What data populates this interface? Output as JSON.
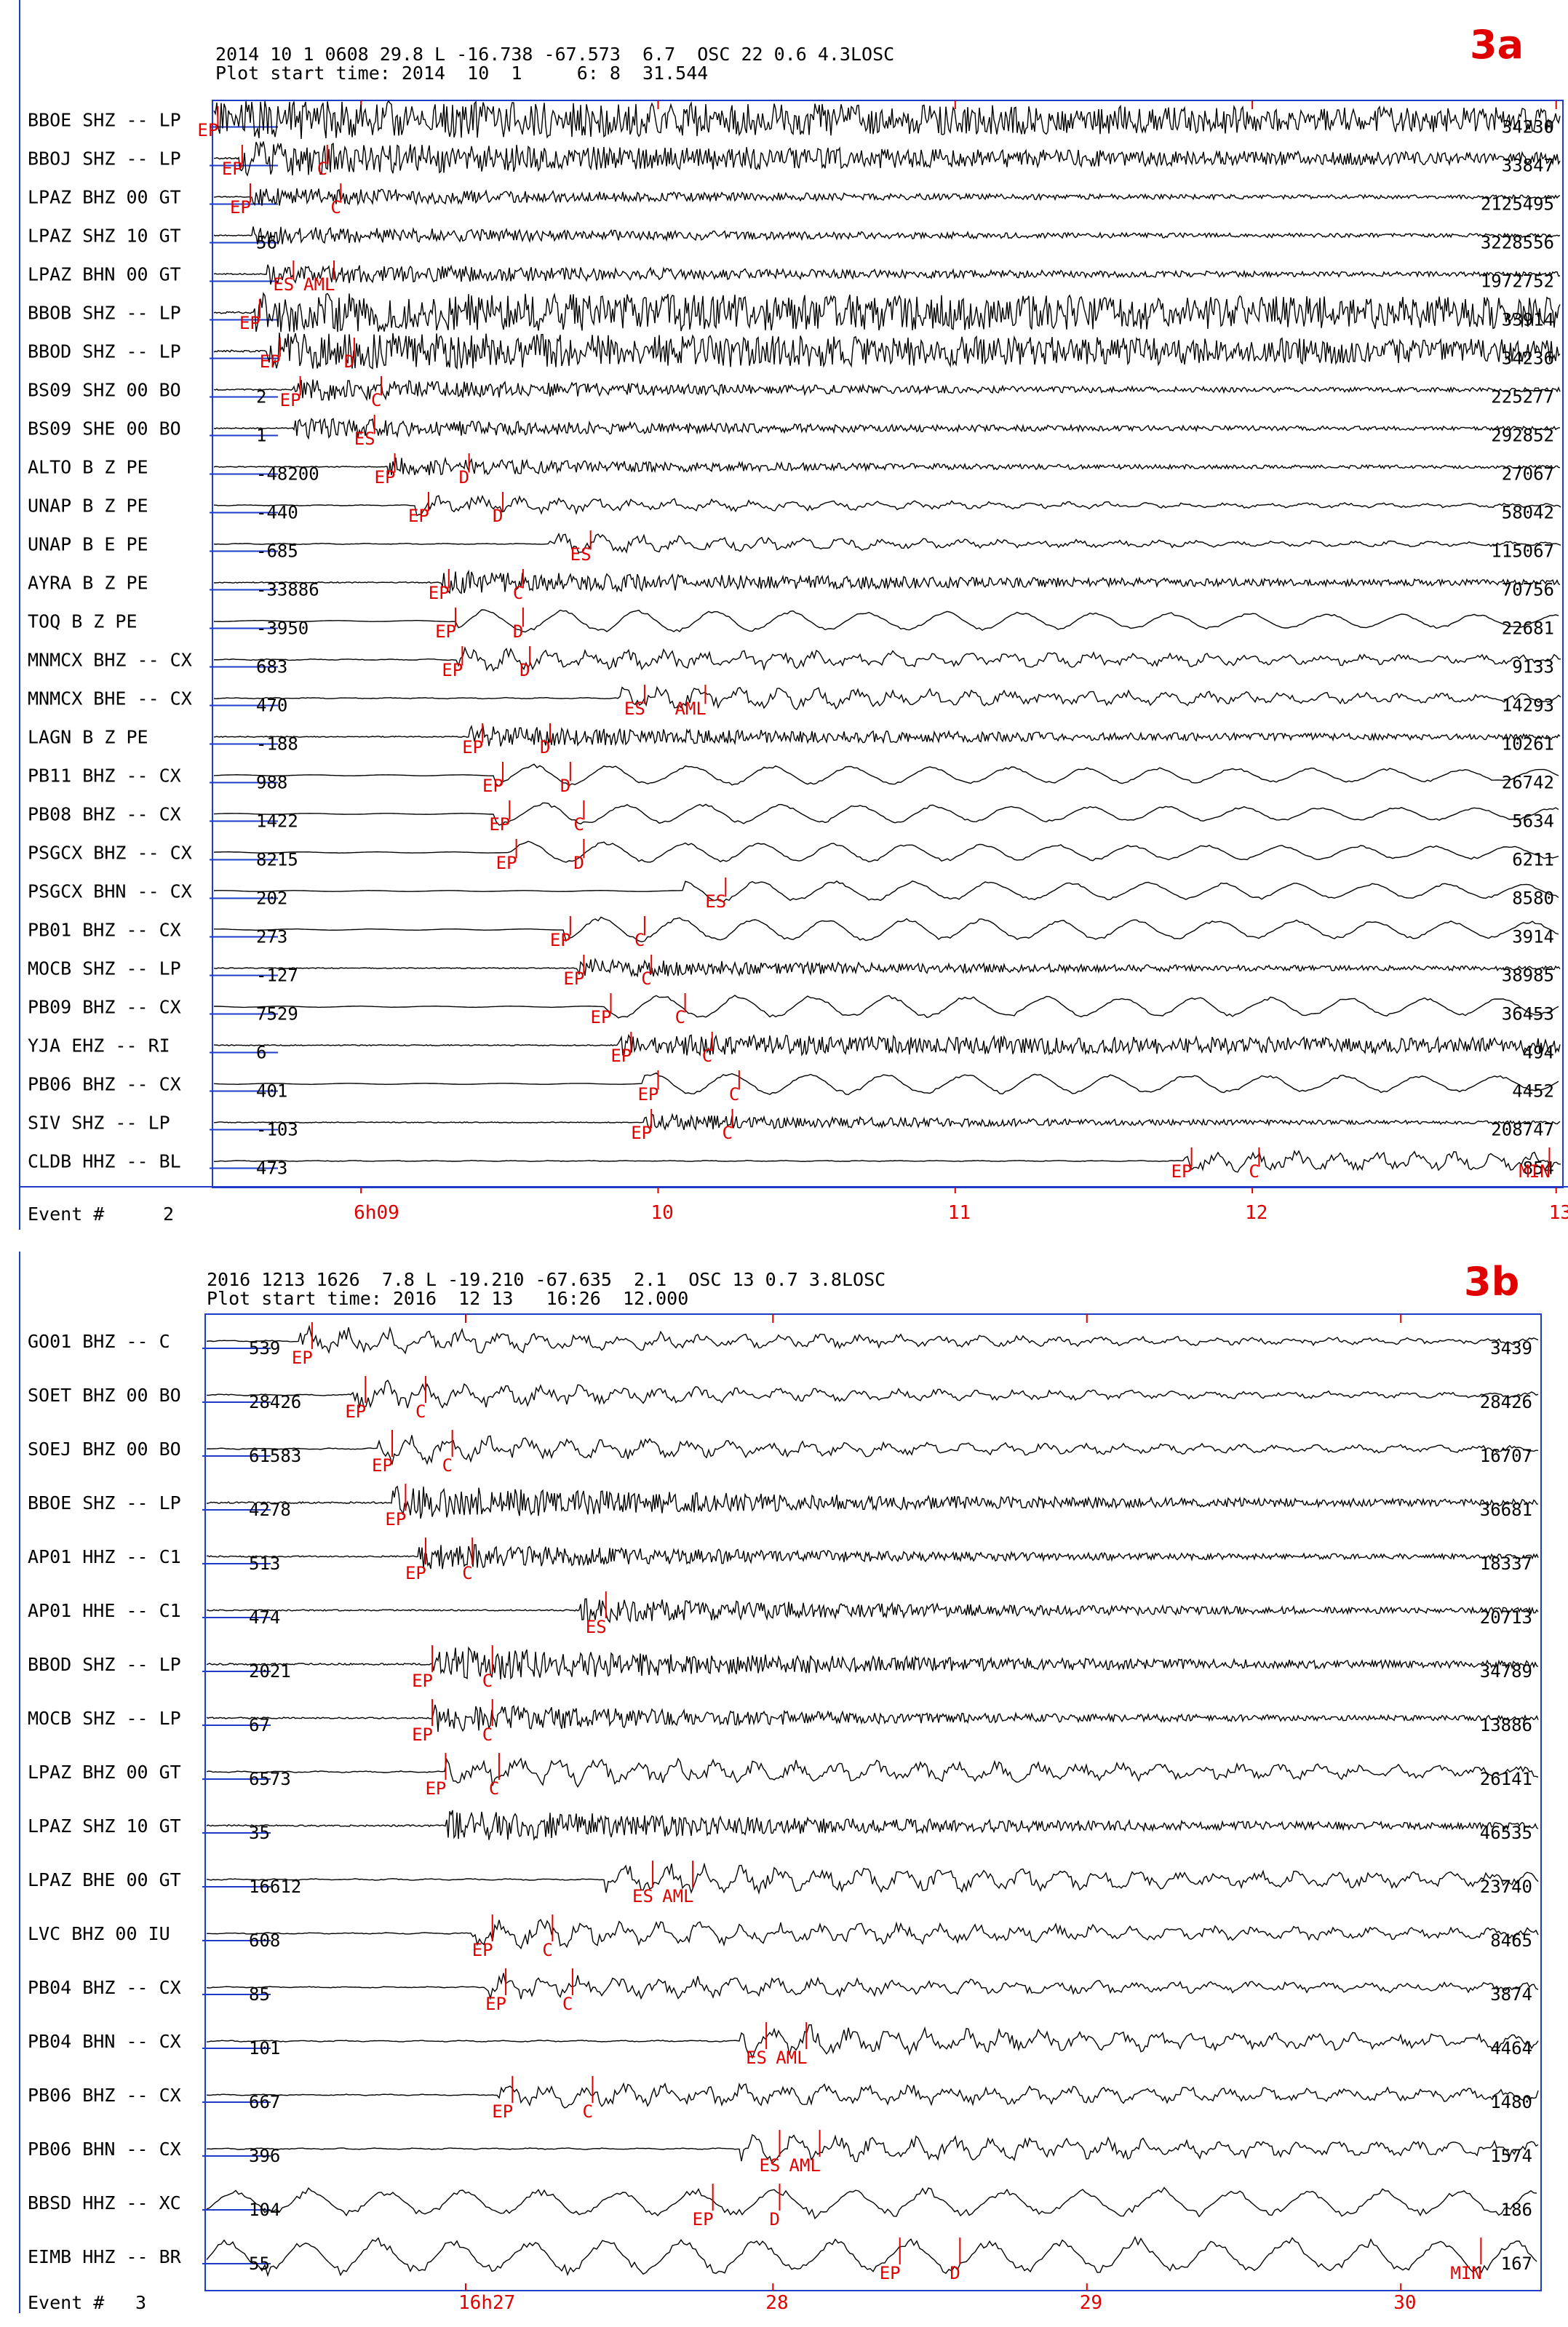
{
  "panel_a": {
    "badge": "3a",
    "header_line1": "2014 10 1 0608 29.8 L -16.738 -67.573  6.7  OSC 22 0.6 4.3LOSC",
    "header_line2": "Plot start time: 2014  10  1     6: 8  31.544",
    "event_label": "Event #",
    "event_number": "2",
    "time_ticks": [
      {
        "label": "6h09",
        "t": 0.11
      },
      {
        "label": "10",
        "t": 0.33
      },
      {
        "label": "11",
        "t": 0.55
      },
      {
        "label": "12",
        "t": 0.77
      },
      {
        "label": "13",
        "t": 0.995
      }
    ],
    "traces": [
      {
        "station": "BBOE  SHZ -- LP",
        "amp_left": "",
        "amp_right": "34230",
        "picks": [
          {
            "label": "EP",
            "t": 0.004
          }
        ],
        "amp": 0.95,
        "onset": 0.0,
        "freq": 9,
        "style": "dense",
        "decay": 0.2
      },
      {
        "station": "BBOJ  SHZ -- LP",
        "amp_left": "",
        "amp_right": "33847",
        "picks": [
          {
            "label": "EP",
            "t": 0.022
          },
          {
            "label": "C",
            "t": 0.085
          }
        ],
        "amp": 0.85,
        "onset": 0.02,
        "freq": 9,
        "style": "dense",
        "decay": 0.5
      },
      {
        "station": "LPAZ  BHZ 00 GT",
        "amp_left": "",
        "amp_right": "2125495",
        "picks": [
          {
            "label": "EP",
            "t": 0.028
          },
          {
            "label": "C",
            "t": 0.095
          }
        ],
        "amp": 0.45,
        "onset": 0.03,
        "freq": 8,
        "style": "dense",
        "decay": 0.9
      },
      {
        "station": "LPAZ  SHZ 10 GT",
        "amp_left": "56",
        "amp_right": "3228556",
        "picks": [],
        "amp": 0.45,
        "onset": 0.03,
        "freq": 8,
        "style": "dense",
        "decay": 0.9
      },
      {
        "station": "LPAZ  BHN 00 GT",
        "amp_left": "",
        "amp_right": "1972752",
        "picks": [
          {
            "label": "ES",
            "t": 0.06
          },
          {
            "label": "AML",
            "t": 0.09
          }
        ],
        "amp": 0.5,
        "onset": 0.04,
        "freq": 8,
        "style": "dense",
        "decay": 0.8
      },
      {
        "station": "BBOB  SHZ -- LP",
        "amp_left": "",
        "amp_right": "33914",
        "picks": [
          {
            "label": "EP",
            "t": 0.035
          }
        ],
        "amp": 0.95,
        "onset": 0.03,
        "freq": 9,
        "style": "dense",
        "decay": 0.1
      },
      {
        "station": "BBOD  SHZ -- LP",
        "amp_left": "",
        "amp_right": "34236",
        "picks": [
          {
            "label": "EP",
            "t": 0.05
          },
          {
            "label": "D",
            "t": 0.105
          }
        ],
        "amp": 0.9,
        "onset": 0.04,
        "freq": 9,
        "style": "dense",
        "decay": 0.2
      },
      {
        "station": "BS09  SHZ 00 BO",
        "amp_left": "2",
        "amp_right": "225277",
        "picks": [
          {
            "label": "EP",
            "t": 0.065
          },
          {
            "label": "C",
            "t": 0.125
          }
        ],
        "amp": 0.55,
        "onset": 0.06,
        "freq": 8,
        "style": "dense",
        "decay": 1.0
      },
      {
        "station": "BS09  SHE 00 BO",
        "amp_left": "1",
        "amp_right": "292852",
        "picks": [
          {
            "label": "ES",
            "t": 0.12
          }
        ],
        "amp": 0.5,
        "onset": 0.06,
        "freq": 8,
        "style": "dense",
        "decay": 1.0
      },
      {
        "station": "ALTO  B Z     PE",
        "amp_left": "-48200",
        "amp_right": "27067",
        "picks": [
          {
            "label": "EP",
            "t": 0.135
          },
          {
            "label": "D",
            "t": 0.19
          }
        ],
        "amp": 0.45,
        "onset": 0.13,
        "freq": 7,
        "style": "dense",
        "decay": 1.2
      },
      {
        "station": "UNAP  B Z     PE",
        "amp_left": "-440",
        "amp_right": "58042",
        "picks": [
          {
            "label": "EP",
            "t": 0.16
          },
          {
            "label": "D",
            "t": 0.215
          }
        ],
        "amp": 0.5,
        "onset": 0.15,
        "freq": 6,
        "style": "mixed",
        "decay": 1.0
      },
      {
        "station": "UNAP  B E     PE",
        "amp_left": "-685",
        "amp_right": "115067",
        "picks": [
          {
            "label": "ES",
            "t": 0.28
          }
        ],
        "amp": 0.5,
        "onset": 0.25,
        "freq": 6,
        "style": "mixed",
        "decay": 1.0
      },
      {
        "station": "AYRA  B Z     PE",
        "amp_left": "-33886",
        "amp_right": "70756",
        "picks": [
          {
            "label": "EP",
            "t": 0.175
          },
          {
            "label": "C",
            "t": 0.23
          }
        ],
        "amp": 0.55,
        "onset": 0.17,
        "freq": 7,
        "style": "dense",
        "decay": 0.8
      },
      {
        "station": "TOQ   B Z     PE",
        "amp_left": "-3950",
        "amp_right": "22681",
        "picks": [
          {
            "label": "EP",
            "t": 0.18
          },
          {
            "label": "D",
            "t": 0.23
          }
        ],
        "amp": 0.6,
        "onset": 0.18,
        "freq": 3,
        "style": "long",
        "decay": 0.3
      },
      {
        "station": "MNMCX BHZ -- CX",
        "amp_left": "683",
        "amp_right": "9133",
        "picks": [
          {
            "label": "EP",
            "t": 0.185
          },
          {
            "label": "D",
            "t": 0.235
          }
        ],
        "amp": 0.6,
        "onset": 0.18,
        "freq": 4,
        "style": "mixed",
        "decay": 0.5
      },
      {
        "station": "MNMCX BHE -- CX",
        "amp_left": "470",
        "amp_right": "14293",
        "picks": [
          {
            "label": "ES",
            "t": 0.32
          },
          {
            "label": "AML",
            "t": 0.365
          }
        ],
        "amp": 0.6,
        "onset": 0.3,
        "freq": 4,
        "style": "mixed",
        "decay": 0.6
      },
      {
        "station": "LAGN  B Z     PE",
        "amp_left": "-188",
        "amp_right": "10261",
        "picks": [
          {
            "label": "EP",
            "t": 0.2
          },
          {
            "label": "D",
            "t": 0.25
          }
        ],
        "amp": 0.5,
        "onset": 0.19,
        "freq": 7,
        "style": "dense",
        "decay": 0.8
      },
      {
        "station": "PB11  BHZ -- CX",
        "amp_left": "988",
        "amp_right": "26742",
        "picks": [
          {
            "label": "EP",
            "t": 0.215
          },
          {
            "label": "D",
            "t": 0.265
          }
        ],
        "amp": 0.55,
        "onset": 0.21,
        "freq": 3,
        "style": "long",
        "decay": 0.3
      },
      {
        "station": "PB08  BHZ -- CX",
        "amp_left": "1422",
        "amp_right": "5634",
        "picks": [
          {
            "label": "EP",
            "t": 0.22
          },
          {
            "label": "C",
            "t": 0.275
          }
        ],
        "amp": 0.55,
        "onset": 0.21,
        "freq": 3,
        "style": "long",
        "decay": 0.3
      },
      {
        "station": "PSGCX BHZ -- CX",
        "amp_left": "8215",
        "amp_right": "6211",
        "picks": [
          {
            "label": "EP",
            "t": 0.225
          },
          {
            "label": "D",
            "t": 0.275
          }
        ],
        "amp": 0.55,
        "onset": 0.22,
        "freq": 3,
        "style": "long",
        "decay": 0.3
      },
      {
        "station": "PSGCX BHN -- CX",
        "amp_left": "202",
        "amp_right": "8580",
        "picks": [
          {
            "label": "ES",
            "t": 0.38
          }
        ],
        "amp": 0.55,
        "onset": 0.35,
        "freq": 3,
        "style": "long",
        "decay": 0.3
      },
      {
        "station": "PB01  BHZ -- CX",
        "amp_left": "273",
        "amp_right": "3914",
        "picks": [
          {
            "label": "EP",
            "t": 0.265
          },
          {
            "label": "C",
            "t": 0.32
          }
        ],
        "amp": 0.6,
        "onset": 0.26,
        "freq": 3,
        "style": "long",
        "decay": 0.2
      },
      {
        "station": "MOCB  SHZ -- LP",
        "amp_left": "-127",
        "amp_right": "38985",
        "picks": [
          {
            "label": "EP",
            "t": 0.275
          },
          {
            "label": "C",
            "t": 0.325
          }
        ],
        "amp": 0.45,
        "onset": 0.27,
        "freq": 8,
        "style": "dense",
        "decay": 1.0
      },
      {
        "station": "PB09  BHZ -- CX",
        "amp_left": "7529",
        "amp_right": "36453",
        "picks": [
          {
            "label": "EP",
            "t": 0.295
          },
          {
            "label": "C",
            "t": 0.35
          }
        ],
        "amp": 0.6,
        "onset": 0.29,
        "freq": 3,
        "style": "long",
        "decay": 0.2
      },
      {
        "station": "YJA   EHZ -- RI",
        "amp_left": "6",
        "amp_right": "494",
        "picks": [
          {
            "label": "EP",
            "t": 0.31
          },
          {
            "label": "C",
            "t": 0.37
          }
        ],
        "amp": 0.5,
        "onset": 0.3,
        "freq": 8,
        "style": "dense",
        "decay": 0.2
      },
      {
        "station": "PB06  BHZ -- CX",
        "amp_left": "401",
        "amp_right": "4452",
        "picks": [
          {
            "label": "EP",
            "t": 0.33
          },
          {
            "label": "C",
            "t": 0.39
          }
        ],
        "amp": 0.55,
        "onset": 0.32,
        "freq": 3,
        "style": "long",
        "decay": 0.2
      },
      {
        "station": "SIV   SHZ -- LP",
        "amp_left": "-103",
        "amp_right": "208747",
        "picks": [
          {
            "label": "EP",
            "t": 0.325
          },
          {
            "label": "C",
            "t": 0.385
          }
        ],
        "amp": 0.4,
        "onset": 0.32,
        "freq": 8,
        "style": "dense",
        "decay": 1.2
      },
      {
        "station": "CLDB  HHZ -- BL",
        "amp_left": "473",
        "amp_right": "854",
        "picks": [
          {
            "label": "EP",
            "t": 0.725
          },
          {
            "label": "C",
            "t": 0.775
          },
          {
            "label": "MIN",
            "t": 0.99
          }
        ],
        "amp": 0.5,
        "onset": 0.72,
        "freq": 6,
        "style": "mixed",
        "decay": 0.3
      }
    ]
  },
  "panel_b": {
    "badge": "3b",
    "header_line1": "2016 1213 1626  7.8 L -19.210 -67.635  2.1  OSC 13 0.7 3.8LOSC",
    "header_line2": "Plot start time: 2016  12 13   16:26  12.000",
    "event_label": "Event #",
    "event_number": "3",
    "time_ticks": [
      {
        "label": "16h27",
        "t": 0.195
      },
      {
        "label": "28",
        "t": 0.425
      },
      {
        "label": "29",
        "t": 0.66
      },
      {
        "label": "30",
        "t": 0.895
      }
    ],
    "traces": [
      {
        "station": "GO01  BHZ -- C",
        "amp_left": "539",
        "amp_right": "3439",
        "picks": [
          {
            "label": "EP",
            "t": 0.08
          }
        ],
        "amp": 0.5,
        "onset": 0.07,
        "freq": 4,
        "style": "mixed",
        "decay": 0.8
      },
      {
        "station": "SOET  BHZ 00 BO",
        "amp_left": "28426",
        "amp_right": "28426",
        "picks": [
          {
            "label": "EP",
            "t": 0.12
          },
          {
            "label": "C",
            "t": 0.165
          }
        ],
        "amp": 0.5,
        "onset": 0.11,
        "freq": 6,
        "style": "mixed",
        "decay": 0.9
      },
      {
        "station": "SOEJ  BHZ 00 BO",
        "amp_left": "61583",
        "amp_right": "16707",
        "picks": [
          {
            "label": "EP",
            "t": 0.14
          },
          {
            "label": "C",
            "t": 0.185
          }
        ],
        "amp": 0.5,
        "onset": 0.13,
        "freq": 6,
        "style": "mixed",
        "decay": 0.8
      },
      {
        "station": "BBOE  SHZ -- LP",
        "amp_left": "4278",
        "amp_right": "36681",
        "picks": [
          {
            "label": "EP",
            "t": 0.15
          }
        ],
        "amp": 0.6,
        "onset": 0.14,
        "freq": 9,
        "style": "dense",
        "decay": 1.0
      },
      {
        "station": "AP01  HHZ -- C1",
        "amp_left": "513",
        "amp_right": "18337",
        "picks": [
          {
            "label": "EP",
            "t": 0.165
          },
          {
            "label": "C",
            "t": 0.2
          }
        ],
        "amp": 0.45,
        "onset": 0.16,
        "freq": 8,
        "style": "dense",
        "decay": 1.1
      },
      {
        "station": "AP01  HHE -- C1",
        "amp_left": "474",
        "amp_right": "20713",
        "picks": [
          {
            "label": "ES",
            "t": 0.3
          }
        ],
        "amp": 0.45,
        "onset": 0.28,
        "freq": 8,
        "style": "dense",
        "decay": 1.1
      },
      {
        "station": "BBOD  SHZ -- LP",
        "amp_left": "2021",
        "amp_right": "34789",
        "picks": [
          {
            "label": "EP",
            "t": 0.17
          },
          {
            "label": "C",
            "t": 0.215
          }
        ],
        "amp": 0.6,
        "onset": 0.17,
        "freq": 9,
        "style": "dense",
        "decay": 1.0
      },
      {
        "station": "MOCB  SHZ -- LP",
        "amp_left": "67",
        "amp_right": "13886",
        "picks": [
          {
            "label": "EP",
            "t": 0.17
          },
          {
            "label": "C",
            "t": 0.215
          }
        ],
        "amp": 0.5,
        "onset": 0.17,
        "freq": 9,
        "style": "dense",
        "decay": 1.2
      },
      {
        "station": "LPAZ  BHZ 00 GT",
        "amp_left": "6573",
        "amp_right": "26141",
        "picks": [
          {
            "label": "EP",
            "t": 0.18
          },
          {
            "label": "C",
            "t": 0.22
          }
        ],
        "amp": 0.55,
        "onset": 0.18,
        "freq": 4,
        "style": "mixed",
        "decay": 0.5
      },
      {
        "station": "LPAZ  SHZ 10 GT",
        "amp_left": "35",
        "amp_right": "46535",
        "picks": [],
        "amp": 0.55,
        "onset": 0.18,
        "freq": 9,
        "style": "dense",
        "decay": 1.0
      },
      {
        "station": "LPAZ  BHE 00 GT",
        "amp_left": "16612",
        "amp_right": "23740",
        "picks": [
          {
            "label": "ES",
            "t": 0.335
          },
          {
            "label": "AML",
            "t": 0.365
          }
        ],
        "amp": 0.55,
        "onset": 0.3,
        "freq": 4,
        "style": "mixed",
        "decay": 0.5
      },
      {
        "station": "LVC   BHZ 00 IU",
        "amp_left": "608",
        "amp_right": "8465",
        "picks": [
          {
            "label": "EP",
            "t": 0.215
          },
          {
            "label": "C",
            "t": 0.26
          }
        ],
        "amp": 0.5,
        "onset": 0.2,
        "freq": 4,
        "style": "mixed",
        "decay": 0.5
      },
      {
        "station": "PB04  BHZ -- CX",
        "amp_left": "85",
        "amp_right": "3874",
        "picks": [
          {
            "label": "EP",
            "t": 0.225
          },
          {
            "label": "C",
            "t": 0.275
          }
        ],
        "amp": 0.45,
        "onset": 0.21,
        "freq": 4,
        "style": "mixed",
        "decay": 0.6
      },
      {
        "station": "PB04  BHN -- CX",
        "amp_left": "101",
        "amp_right": "4464",
        "picks": [
          {
            "label": "ES",
            "t": 0.42
          },
          {
            "label": "AML",
            "t": 0.45
          }
        ],
        "amp": 0.55,
        "onset": 0.4,
        "freq": 4,
        "style": "mixed",
        "decay": 0.6
      },
      {
        "station": "PB06  BHZ -- CX",
        "amp_left": "667",
        "amp_right": "1480",
        "picks": [
          {
            "label": "EP",
            "t": 0.23
          },
          {
            "label": "C",
            "t": 0.29
          }
        ],
        "amp": 0.45,
        "onset": 0.22,
        "freq": 4,
        "style": "mixed",
        "decay": 0.4
      },
      {
        "station": "PB06  BHN -- CX",
        "amp_left": "396",
        "amp_right": "1574",
        "picks": [
          {
            "label": "ES",
            "t": 0.43
          },
          {
            "label": "AML",
            "t": 0.46
          }
        ],
        "amp": 0.5,
        "onset": 0.4,
        "freq": 4,
        "style": "mixed",
        "decay": 0.5
      },
      {
        "station": "BBSD  HHZ -- XC",
        "amp_left": "104",
        "amp_right": "186",
        "picks": [
          {
            "label": "EP",
            "t": 0.38
          },
          {
            "label": "D",
            "t": 0.43
          }
        ],
        "amp": 0.55,
        "onset": 0.0,
        "freq": 2,
        "style": "long",
        "decay": 0.0
      },
      {
        "station": "EIMB  HHZ -- BR",
        "amp_left": "55",
        "amp_right": "167",
        "picks": [
          {
            "label": "EP",
            "t": 0.52
          },
          {
            "label": "D",
            "t": 0.565
          },
          {
            "label": "MIN",
            "t": 0.955
          }
        ],
        "amp": 0.7,
        "onset": 0.0,
        "freq": 2,
        "style": "long",
        "decay": 0.0
      }
    ]
  }
}
